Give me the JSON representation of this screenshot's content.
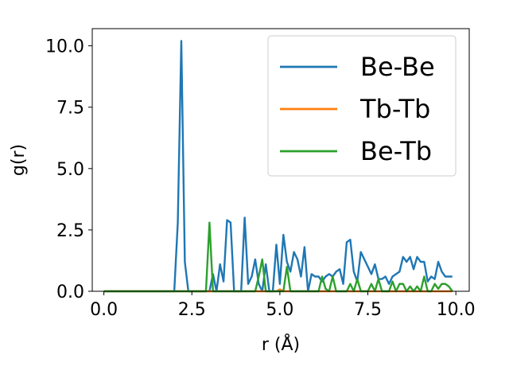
{
  "chart_data": {
    "type": "line",
    "xlabel": "r (Å)",
    "ylabel": "g(r)",
    "xlim": [
      -0.33,
      10.38
    ],
    "ylim": [
      0,
      10.7
    ],
    "xticks": [
      0.0,
      2.5,
      5.0,
      7.5,
      10.0
    ],
    "yticks": [
      0.0,
      2.5,
      5.0,
      7.5,
      10.0
    ],
    "xtick_labels": [
      "0.0",
      "2.5",
      "5.0",
      "7.5",
      "10.0"
    ],
    "ytick_labels": [
      "0.0",
      "2.5",
      "5.0",
      "7.5",
      "10.0"
    ],
    "grid": false,
    "legend_position": "top-right",
    "series": [
      {
        "name": "Be-Be",
        "color": "#1f77b4",
        "x": [
          0.0,
          2.0,
          2.1,
          2.2,
          2.3,
          2.4,
          2.5,
          2.6,
          2.7,
          2.8,
          2.9,
          3.0,
          3.1,
          3.2,
          3.3,
          3.4,
          3.5,
          3.6,
          3.7,
          3.8,
          3.9,
          4.0,
          4.1,
          4.2,
          4.3,
          4.4,
          4.5,
          4.6,
          4.7,
          4.8,
          4.9,
          5.0,
          5.1,
          5.2,
          5.3,
          5.4,
          5.5,
          5.6,
          5.7,
          5.8,
          5.9,
          6.0,
          6.1,
          6.2,
          6.3,
          6.4,
          6.5,
          6.6,
          6.7,
          6.8,
          6.9,
          7.0,
          7.1,
          7.2,
          7.3,
          7.4,
          7.5,
          7.6,
          7.7,
          7.8,
          7.9,
          8.0,
          8.1,
          8.2,
          8.3,
          8.4,
          8.5,
          8.6,
          8.7,
          8.8,
          8.9,
          9.0,
          9.1,
          9.2,
          9.3,
          9.4,
          9.5,
          9.6,
          9.7,
          9.8,
          9.9
        ],
        "y": [
          0,
          0,
          2.8,
          10.2,
          1.2,
          0,
          0,
          0,
          0,
          0,
          0,
          0,
          0.7,
          0,
          1.1,
          0.4,
          2.9,
          2.8,
          0,
          0,
          0,
          3.0,
          0.3,
          0.6,
          1.3,
          0.3,
          0,
          1.1,
          0,
          0,
          1.9,
          0.3,
          2.3,
          1.2,
          0.8,
          1.6,
          1.3,
          0.6,
          1.8,
          0,
          0.7,
          0.6,
          0.6,
          0.4,
          0.6,
          0.7,
          0.6,
          0.8,
          0.9,
          0.3,
          2.0,
          2.1,
          0.8,
          0.4,
          1.6,
          1.3,
          1.0,
          0.7,
          1.1,
          0.5,
          0.5,
          0.6,
          0.3,
          0.6,
          0.7,
          0.8,
          1.4,
          1.2,
          1.4,
          0.9,
          1.4,
          1.2,
          1.2,
          0.4,
          0.6,
          0.5,
          1.2,
          0.8,
          0.6,
          0.6,
          0.6
        ]
      },
      {
        "name": "Tb-Tb",
        "color": "#ff7f0e",
        "x": [
          0.0,
          4.8,
          4.9,
          5.0,
          5.1,
          9.9
        ],
        "y": [
          0,
          0,
          0,
          0.08,
          0,
          0
        ]
      },
      {
        "name": "Be-Tb",
        "color": "#2ca02c",
        "x": [
          0.0,
          2.9,
          3.0,
          3.1,
          3.2,
          4.3,
          4.4,
          4.5,
          4.6,
          5.0,
          5.1,
          5.2,
          5.3,
          6.1,
          6.2,
          6.3,
          6.4,
          6.5,
          6.6,
          6.9,
          7.0,
          7.1,
          7.2,
          7.3,
          7.5,
          7.6,
          7.7,
          7.8,
          7.9,
          8.1,
          8.2,
          8.3,
          8.4,
          8.5,
          8.6,
          8.7,
          8.8,
          8.9,
          9.0,
          9.1,
          9.2,
          9.3,
          9.4,
          9.5,
          9.6,
          9.7,
          9.8,
          9.9
        ],
        "y": [
          0,
          0,
          2.8,
          0,
          0,
          0,
          0.6,
          1.3,
          0,
          0,
          0,
          1.0,
          0,
          0,
          0.6,
          0.1,
          0,
          0.6,
          0,
          0,
          0.3,
          0,
          0.5,
          0,
          0,
          0.3,
          0,
          0.5,
          0,
          0,
          0.4,
          0,
          0.3,
          0.3,
          0,
          0.2,
          0,
          0.2,
          0,
          0.6,
          0,
          0,
          0.3,
          0.1,
          0.3,
          0.3,
          0.2,
          0
        ]
      }
    ]
  }
}
